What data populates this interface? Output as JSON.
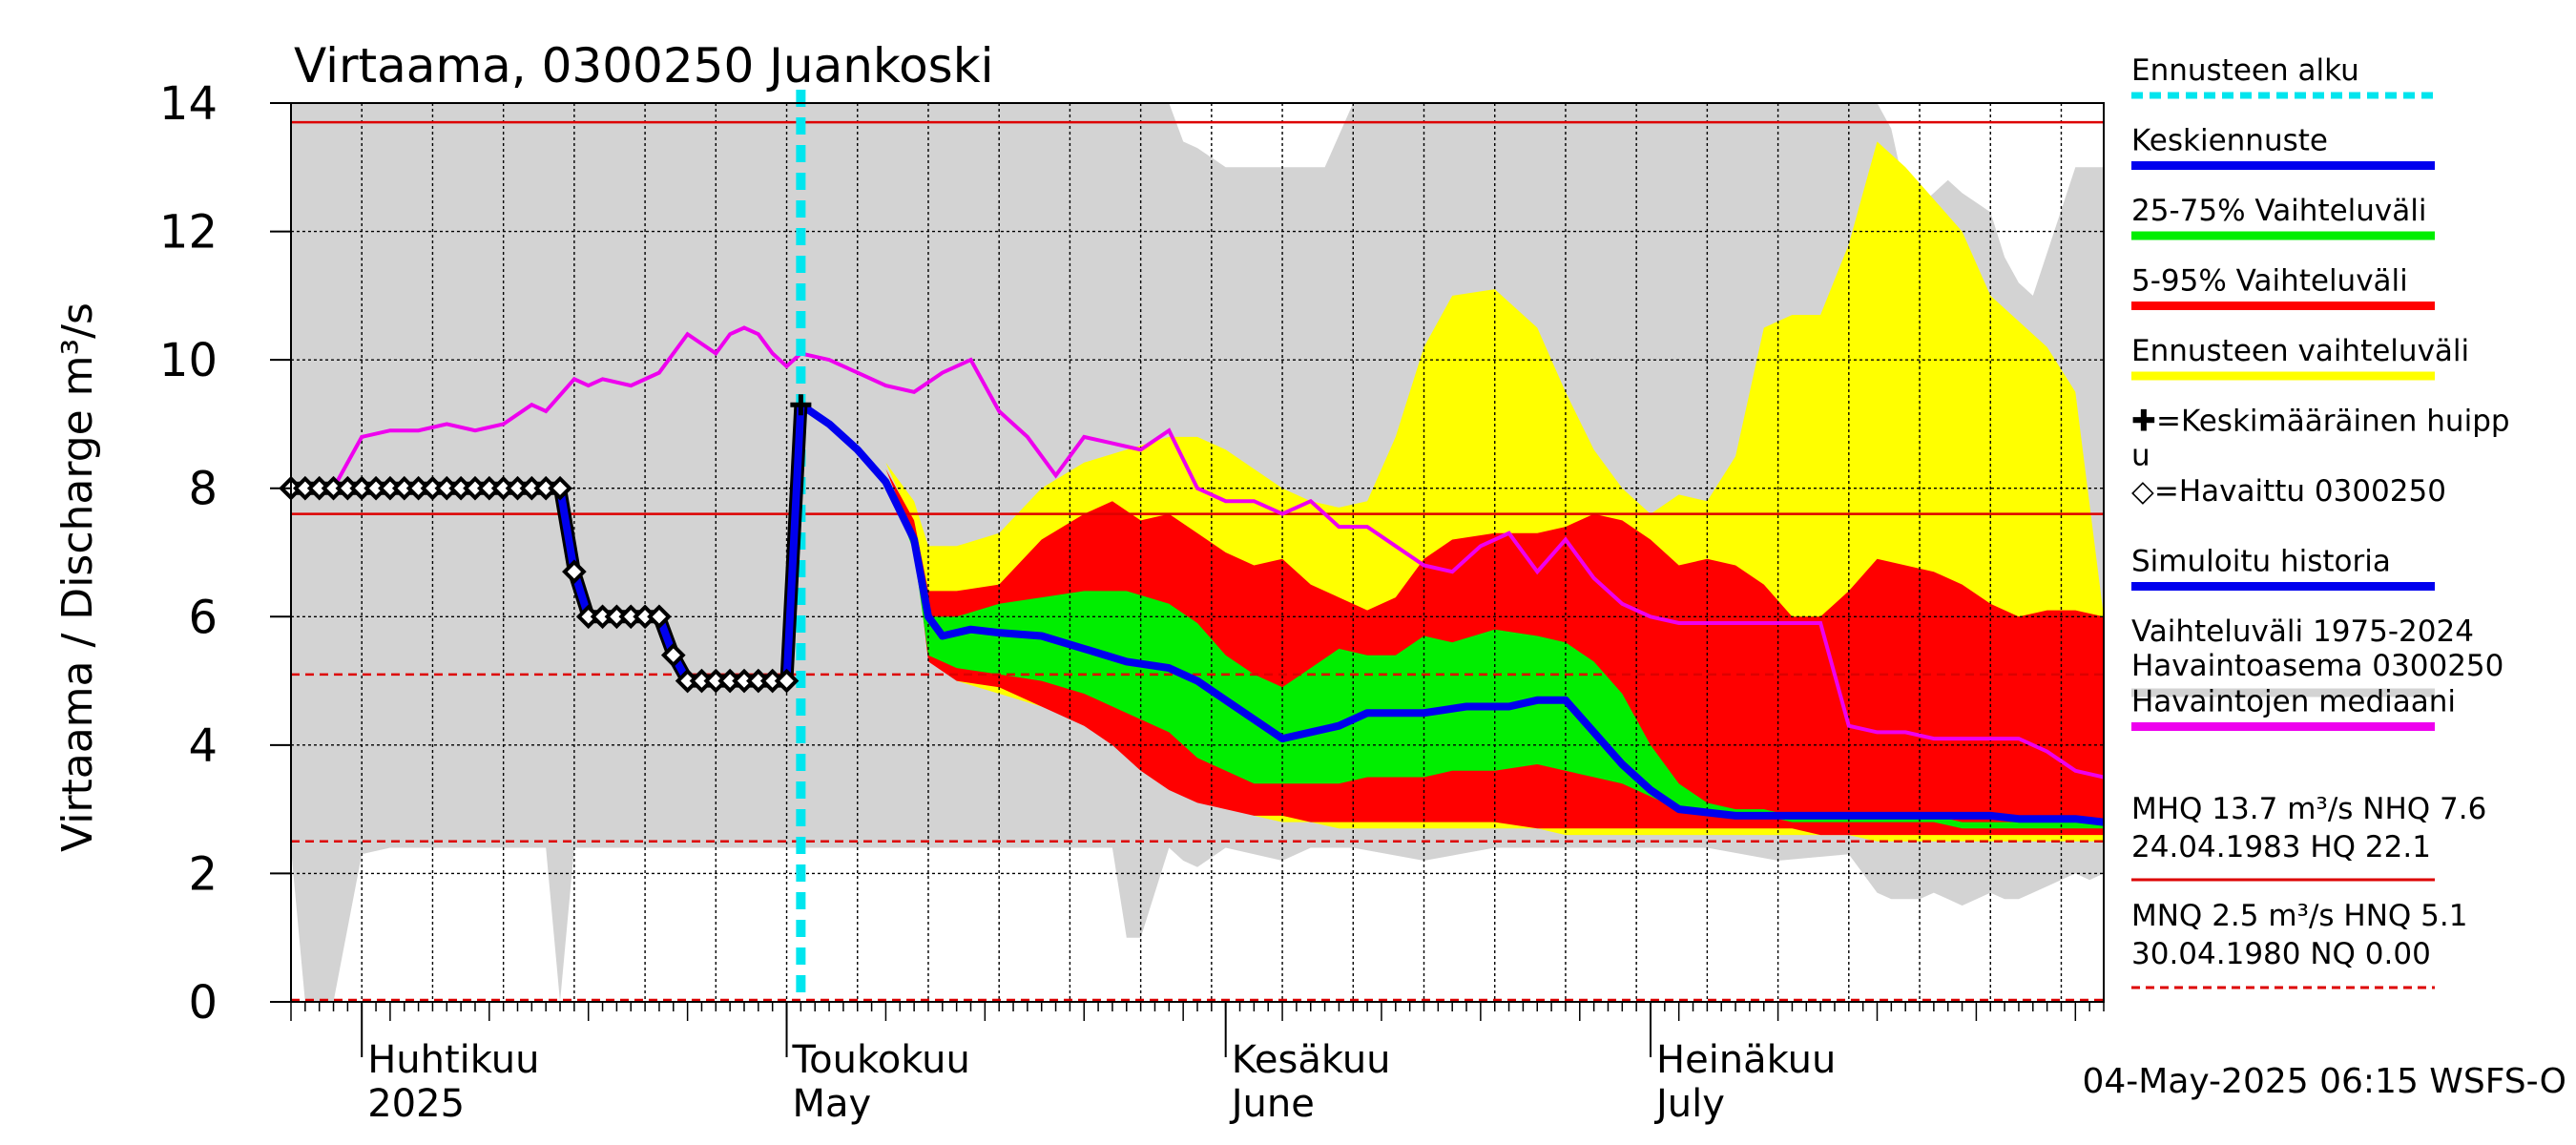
{
  "chart_data": {
    "type": "area",
    "title": "Virtaama, 0300250 Juankoski",
    "ylabel": "Virtaama / Discharge   m³/s",
    "ylim": [
      0,
      14
    ],
    "yticks": [
      0,
      2,
      4,
      6,
      8,
      10,
      12,
      14
    ],
    "xlim": [
      "2025-03-27",
      "2025-08-02"
    ],
    "grid": true,
    "month_labels": [
      {
        "fi": "Huhtikuu",
        "en": "2025",
        "date": "2025-04-01"
      },
      {
        "fi": "Toukokuu",
        "en": "May",
        "date": "2025-05-01"
      },
      {
        "fi": "Kesäkuu",
        "en": "June",
        "date": "2025-06-01"
      },
      {
        "fi": "Heinäkuu",
        "en": "July",
        "date": "2025-07-01"
      }
    ],
    "forecast_start": "2025-05-02",
    "colors": {
      "history_range": "#d3d3d3",
      "forecast_range": "#ffff00",
      "p5_95": "#ff0000",
      "p25_75": "#00ee00",
      "mean_forecast": "#0000ee",
      "median": "#ee00ee",
      "forecast_start": "#00e5ee",
      "ref_line": "#dd0000"
    },
    "reference_lines": [
      {
        "name": "MHQ",
        "value": 13.7,
        "style": "solid"
      },
      {
        "name": "NHQ",
        "value": 7.6,
        "style": "solid"
      },
      {
        "name": "HNQ",
        "value": 5.1,
        "style": "dashed"
      },
      {
        "name": "MNQ",
        "value": 2.5,
        "style": "dashed"
      },
      {
        "name": "NQ",
        "value": 0.0,
        "style": "dashed"
      }
    ],
    "history_range": {
      "x": [
        0,
        1,
        2,
        3,
        5,
        7,
        10,
        14,
        16,
        18,
        19,
        20,
        21,
        28,
        30,
        31,
        35,
        40,
        50,
        58,
        59,
        60,
        62,
        63,
        64,
        66,
        70,
        72,
        73,
        75,
        80,
        85,
        90,
        95,
        100,
        105,
        110,
        112,
        113,
        114,
        115,
        116,
        117,
        118,
        120,
        121,
        122,
        123,
        126,
        127,
        128
      ],
      "lower": [
        2.4,
        0.0,
        0.0,
        0.0,
        2.3,
        2.4,
        2.4,
        2.4,
        2.4,
        2.4,
        0.0,
        2.4,
        2.4,
        2.4,
        2.4,
        2.4,
        2.4,
        2.4,
        2.4,
        2.4,
        1.0,
        1.0,
        2.4,
        2.2,
        2.1,
        2.4,
        2.2,
        2.4,
        2.4,
        2.4,
        2.2,
        2.4,
        2.4,
        2.4,
        2.4,
        2.2,
        2.3,
        1.7,
        1.6,
        1.6,
        1.6,
        1.7,
        1.6,
        1.5,
        1.7,
        1.6,
        1.6,
        1.7,
        2.0,
        1.9,
        2.0
      ],
      "upper": [
        14.0,
        14.0,
        14.0,
        14.0,
        14.0,
        14.0,
        14.0,
        14.0,
        14.0,
        14.0,
        14.0,
        14.0,
        14.0,
        14.0,
        14.0,
        14.0,
        14.0,
        14.0,
        14.0,
        14.0,
        14.0,
        14.0,
        14.0,
        13.4,
        13.3,
        13.0,
        13.0,
        13.0,
        13.0,
        14.0,
        14.0,
        14.0,
        14.0,
        14.0,
        14.0,
        14.0,
        14.0,
        14.0,
        13.6,
        12.6,
        12.4,
        12.6,
        12.8,
        12.6,
        12.3,
        11.6,
        11.2,
        11.0,
        13.0,
        13.0,
        13.0
      ]
    },
    "forecast_range": {
      "x": [
        36,
        38,
        40,
        42,
        44,
        45,
        47,
        50,
        53,
        56,
        59,
        62,
        64,
        66,
        68,
        70,
        72,
        74,
        76,
        78,
        80,
        82,
        85,
        88,
        90,
        92,
        94,
        96,
        98,
        100,
        102,
        104,
        106,
        108,
        110,
        112,
        114,
        116,
        118,
        120,
        122,
        124,
        126,
        128
      ],
      "upper": [
        9.4,
        9.2,
        8.9,
        8.4,
        7.8,
        7.1,
        7.1,
        7.3,
        8.0,
        8.4,
        8.6,
        8.8,
        8.8,
        8.6,
        8.3,
        8.0,
        7.8,
        7.7,
        7.8,
        8.8,
        10.2,
        11.0,
        11.1,
        10.5,
        9.5,
        8.6,
        8.0,
        7.6,
        7.9,
        7.8,
        8.5,
        10.5,
        10.7,
        10.7,
        11.8,
        13.4,
        13.0,
        12.5,
        12.0,
        11.0,
        10.6,
        10.2,
        9.5,
        6.0
      ],
      "lower": [
        9.4,
        9.2,
        8.9,
        8.4,
        7.4,
        5.8,
        5.0,
        4.8,
        4.6,
        4.4,
        4.0,
        3.6,
        3.4,
        3.1,
        2.9,
        2.8,
        2.8,
        2.7,
        2.7,
        2.7,
        2.7,
        2.7,
        2.7,
        2.7,
        2.6,
        2.6,
        2.6,
        2.6,
        2.6,
        2.6,
        2.6,
        2.6,
        2.6,
        2.6,
        2.6,
        2.5,
        2.5,
        2.5,
        2.5,
        2.5,
        2.5,
        2.5,
        2.5,
        2.5
      ]
    },
    "p5_95": {
      "x": [
        36,
        38,
        40,
        42,
        44,
        45,
        47,
        50,
        53,
        56,
        58,
        60,
        62,
        64,
        66,
        68,
        70,
        72,
        74,
        76,
        78,
        80,
        82,
        85,
        88,
        90,
        92,
        94,
        96,
        98,
        100,
        102,
        104,
        106,
        108,
        110,
        112,
        114,
        116,
        118,
        120,
        122,
        124,
        126,
        128
      ],
      "upper": [
        9.4,
        9.2,
        8.8,
        8.3,
        7.5,
        6.4,
        6.4,
        6.5,
        7.2,
        7.6,
        7.8,
        7.5,
        7.6,
        7.3,
        7.0,
        6.8,
        6.9,
        6.5,
        6.3,
        6.1,
        6.3,
        6.9,
        7.2,
        7.3,
        7.3,
        7.4,
        7.6,
        7.5,
        7.2,
        6.8,
        6.9,
        6.8,
        6.5,
        6.0,
        6.0,
        6.4,
        6.9,
        6.8,
        6.7,
        6.5,
        6.2,
        6.0,
        6.1,
        6.1,
        6.0
      ],
      "lower": [
        9.4,
        9.2,
        8.8,
        8.3,
        7.2,
        5.3,
        5.0,
        4.9,
        4.6,
        4.3,
        4.0,
        3.6,
        3.3,
        3.1,
        3.0,
        2.9,
        2.9,
        2.8,
        2.8,
        2.8,
        2.8,
        2.8,
        2.8,
        2.8,
        2.7,
        2.7,
        2.7,
        2.7,
        2.7,
        2.7,
        2.7,
        2.7,
        2.7,
        2.7,
        2.6,
        2.6,
        2.6,
        2.6,
        2.6,
        2.6,
        2.6,
        2.6,
        2.6,
        2.6,
        2.6
      ]
    },
    "p25_75": {
      "x": [
        36,
        38,
        40,
        42,
        44,
        45,
        47,
        50,
        53,
        56,
        59,
        62,
        64,
        66,
        68,
        70,
        72,
        74,
        76,
        78,
        80,
        82,
        85,
        88,
        90,
        92,
        94,
        96,
        98,
        100,
        102,
        104,
        106,
        108,
        110,
        112,
        114,
        116,
        118,
        120,
        122,
        124,
        126,
        128
      ],
      "upper": [
        9.3,
        9.1,
        8.7,
        8.2,
        7.1,
        6.0,
        6.0,
        6.2,
        6.3,
        6.4,
        6.4,
        6.2,
        5.9,
        5.4,
        5.1,
        4.9,
        5.2,
        5.5,
        5.4,
        5.4,
        5.7,
        5.6,
        5.8,
        5.7,
        5.6,
        5.3,
        4.8,
        4.0,
        3.4,
        3.1,
        3.0,
        3.0,
        2.9,
        2.9,
        2.9,
        2.9,
        2.9,
        2.9,
        2.8,
        2.8,
        2.8,
        2.8,
        2.8,
        2.8
      ],
      "lower": [
        9.3,
        9.1,
        8.7,
        8.2,
        7.0,
        5.4,
        5.2,
        5.1,
        5.0,
        4.8,
        4.5,
        4.2,
        3.8,
        3.6,
        3.4,
        3.4,
        3.4,
        3.4,
        3.5,
        3.5,
        3.5,
        3.6,
        3.6,
        3.7,
        3.6,
        3.5,
        3.4,
        3.2,
        3.0,
        2.9,
        2.9,
        2.9,
        2.8,
        2.8,
        2.8,
        2.8,
        2.8,
        2.8,
        2.7,
        2.7,
        2.7,
        2.7,
        2.7,
        2.7
      ]
    },
    "series": [
      {
        "name": "Keskiennuste",
        "x": [
          36,
          38,
          40,
          42,
          44,
          45,
          46,
          48,
          50,
          53,
          56,
          59,
          62,
          64,
          66,
          68,
          70,
          72,
          74,
          76,
          78,
          80,
          83,
          86,
          88,
          90,
          92,
          94,
          96,
          98,
          100,
          102,
          104,
          106,
          108,
          110,
          112,
          114,
          116,
          118,
          120,
          122,
          124,
          126,
          128
        ],
        "y": [
          9.3,
          9.0,
          8.6,
          8.1,
          7.2,
          6.0,
          5.7,
          5.8,
          5.75,
          5.7,
          5.5,
          5.3,
          5.2,
          5.0,
          4.7,
          4.4,
          4.1,
          4.2,
          4.3,
          4.5,
          4.5,
          4.5,
          4.6,
          4.6,
          4.7,
          4.7,
          4.2,
          3.7,
          3.3,
          3.0,
          2.95,
          2.9,
          2.9,
          2.9,
          2.9,
          2.9,
          2.9,
          2.9,
          2.9,
          2.9,
          2.9,
          2.85,
          2.85,
          2.85,
          2.8
        ]
      },
      {
        "name": "Havaintojen mediaani",
        "x": [
          0,
          2,
          3,
          5,
          7,
          9,
          11,
          13,
          15,
          17,
          18,
          20,
          21,
          22,
          24,
          26,
          28,
          30,
          31,
          32,
          33,
          34,
          35,
          36,
          38,
          40,
          42,
          44,
          46,
          48,
          50,
          52,
          54,
          56,
          58,
          60,
          62,
          64,
          66,
          68,
          70,
          72,
          74,
          76,
          78,
          80,
          82,
          84,
          86,
          88,
          90,
          92,
          94,
          96,
          98,
          100,
          102,
          104,
          106,
          108,
          110,
          112,
          114,
          116,
          118,
          120,
          122,
          124,
          126,
          128
        ],
        "y": [
          8.0,
          8.0,
          8.0,
          8.8,
          8.9,
          8.9,
          9.0,
          8.9,
          9.0,
          9.3,
          9.2,
          9.7,
          9.6,
          9.7,
          9.6,
          9.8,
          10.4,
          10.1,
          10.4,
          10.5,
          10.4,
          10.1,
          9.9,
          10.1,
          10.0,
          9.8,
          9.6,
          9.5,
          9.8,
          10.0,
          9.2,
          8.8,
          8.2,
          8.8,
          8.7,
          8.6,
          8.9,
          8.0,
          7.8,
          7.8,
          7.6,
          7.8,
          7.4,
          7.4,
          7.1,
          6.8,
          6.7,
          7.1,
          7.3,
          6.7,
          7.2,
          6.6,
          6.2,
          6.0,
          5.9,
          5.9,
          5.9,
          5.9,
          5.9,
          5.9,
          4.3,
          4.2,
          4.2,
          4.1,
          4.1,
          4.1,
          4.1,
          3.9,
          3.6,
          3.5
        ]
      },
      {
        "name": "Havaittu 0300250",
        "x": [
          0,
          1,
          2,
          3,
          4,
          5,
          6,
          7,
          8,
          9,
          10,
          11,
          12,
          13,
          14,
          15,
          16,
          17,
          18,
          19,
          20,
          21,
          22,
          23,
          24,
          25,
          26,
          27,
          28,
          29,
          30,
          31,
          32,
          33,
          34,
          35,
          36
        ],
        "y": [
          8.0,
          8.0,
          8.0,
          8.0,
          8.0,
          8.0,
          8.0,
          8.0,
          8.0,
          8.0,
          8.0,
          8.0,
          8.0,
          8.0,
          8.0,
          8.0,
          8.0,
          8.0,
          8.0,
          8.0,
          6.7,
          6.0,
          6.0,
          6.0,
          6.0,
          6.0,
          6.0,
          5.4,
          5.0,
          5.0,
          5.0,
          5.0,
          5.0,
          5.0,
          5.0,
          5.0,
          9.3
        ]
      }
    ],
    "mean_peak": {
      "x": 36,
      "y": 9.3
    }
  },
  "legend": {
    "items": [
      {
        "label": "Ennusteen alku",
        "color": "#00e5ee",
        "style": "dashed"
      },
      {
        "label": "Keskiennuste",
        "color": "#0000ee",
        "style": "solid"
      },
      {
        "label": "25-75% Vaihteluväli",
        "color": "#00ee00",
        "style": "solid"
      },
      {
        "label": "5-95% Vaihteluväli",
        "color": "#ff0000",
        "style": "solid"
      },
      {
        "label": "Ennusteen vaihteluväli",
        "color": "#ffff00",
        "style": "solid"
      },
      {
        "label": "✚=Keskimääräinen huipp",
        "label2": "u",
        "color": null
      },
      {
        "label": "◇=Havaittu 0300250",
        "color": null
      },
      {
        "label": "Simuloitu historia",
        "color": "#0000ee",
        "style": "solid"
      },
      {
        "label": "Vaihteluväli 1975-2024",
        "label2": " Havaintoasema 0300250",
        "color": "#d3d3d3",
        "style": "solid"
      },
      {
        "label": "Havaintojen mediaani",
        "color": "#ee00ee",
        "style": "solid"
      }
    ],
    "stats_high_1": "MHQ 13.7 m³/s NHQ  7.6",
    "stats_high_2": "24.04.1983 HQ 22.1",
    "stats_low_1": "MNQ  2.5 m³/s HNQ  5.1",
    "stats_low_2": "30.04.1980 NQ 0.00"
  },
  "footer": {
    "timestamp": "04-May-2025 06:15 WSFS-O"
  }
}
